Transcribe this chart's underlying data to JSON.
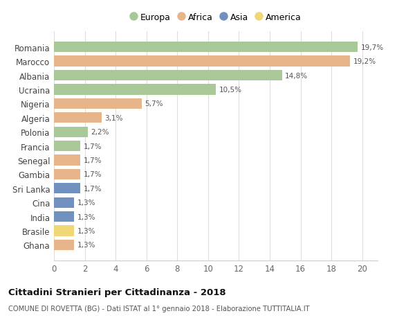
{
  "countries": [
    "Romania",
    "Marocco",
    "Albania",
    "Ucraina",
    "Nigeria",
    "Algeria",
    "Polonia",
    "Francia",
    "Senegal",
    "Gambia",
    "Sri Lanka",
    "Cina",
    "India",
    "Brasile",
    "Ghana"
  ],
  "values": [
    19.7,
    19.2,
    14.8,
    10.5,
    5.7,
    3.1,
    2.2,
    1.7,
    1.7,
    1.7,
    1.7,
    1.3,
    1.3,
    1.3,
    1.3
  ],
  "labels": [
    "19,7%",
    "19,2%",
    "14,8%",
    "10,5%",
    "5,7%",
    "3,1%",
    "2,2%",
    "1,7%",
    "1,7%",
    "1,7%",
    "1,7%",
    "1,3%",
    "1,3%",
    "1,3%",
    "1,3%"
  ],
  "continents": [
    "Europa",
    "Africa",
    "Europa",
    "Europa",
    "Africa",
    "Africa",
    "Europa",
    "Europa",
    "Africa",
    "Africa",
    "Asia",
    "Asia",
    "Asia",
    "America",
    "Africa"
  ],
  "continent_colors": {
    "Europa": "#a8c898",
    "Africa": "#e8b48a",
    "Asia": "#7090c0",
    "America": "#f0d878"
  },
  "legend_items": [
    "Europa",
    "Africa",
    "Asia",
    "America"
  ],
  "title": "Cittadini Stranieri per Cittadinanza - 2018",
  "subtitle": "COMUNE DI ROVETTA (BG) - Dati ISTAT al 1° gennaio 2018 - Elaborazione TUTTITALIA.IT",
  "xlim": [
    0,
    21
  ],
  "xticks": [
    0,
    2,
    4,
    6,
    8,
    10,
    12,
    14,
    16,
    18,
    20
  ],
  "bg_color": "#ffffff",
  "grid_color": "#dddddd"
}
